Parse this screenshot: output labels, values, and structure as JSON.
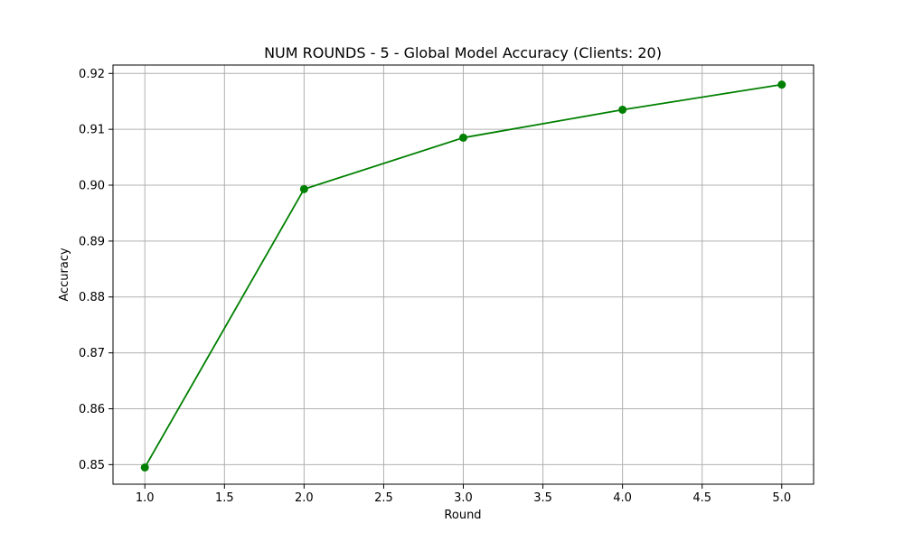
{
  "chart_data": {
    "type": "line",
    "title": "NUM ROUNDS - 5 - Global Model Accuracy (Clients: 20)",
    "xlabel": "Round",
    "ylabel": "Accuracy",
    "x": [
      1,
      2,
      3,
      4,
      5
    ],
    "series": [
      {
        "values": [
          0.8495,
          0.8993,
          0.9085,
          0.9135,
          0.918
        ]
      }
    ],
    "xlim": [
      0.8,
      5.2
    ],
    "ylim": [
      0.8465,
      0.9215
    ],
    "xticks": [
      1.0,
      1.5,
      2.0,
      2.5,
      3.0,
      3.5,
      4.0,
      4.5,
      5.0
    ],
    "xtick_labels": [
      "1.0",
      "1.5",
      "2.0",
      "2.5",
      "3.0",
      "3.5",
      "4.0",
      "4.5",
      "5.0"
    ],
    "yticks": [
      0.85,
      0.86,
      0.87,
      0.88,
      0.89,
      0.9,
      0.91,
      0.92
    ],
    "ytick_labels": [
      "0.85",
      "0.86",
      "0.87",
      "0.88",
      "0.89",
      "0.90",
      "0.91",
      "0.92"
    ],
    "grid": true,
    "marker": "circle",
    "line_color": "#008000"
  }
}
